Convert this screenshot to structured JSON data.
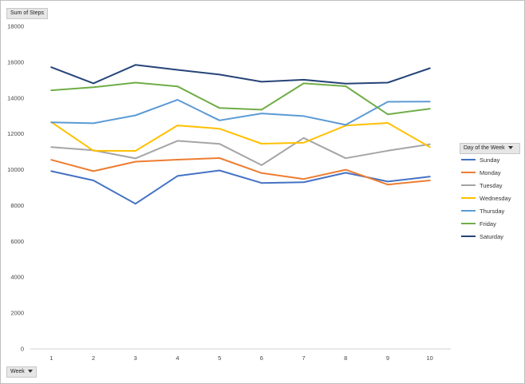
{
  "chart_data": {
    "type": "line",
    "title": "",
    "values_button": "Sum of Steps",
    "axis_button": "Week",
    "legend_title": "Day of the Week",
    "legend_position": "right",
    "grid": false,
    "ylim": [
      0,
      18000
    ],
    "yticks": [
      "0",
      "2000",
      "4000",
      "6000",
      "8000",
      "10000",
      "12000",
      "14000",
      "16000",
      "18000"
    ],
    "categories": [
      "1",
      "2",
      "3",
      "4",
      "5",
      "6",
      "7",
      "8",
      "9",
      "10"
    ],
    "series": [
      {
        "name": "Sunday",
        "color": "#4472C4",
        "values": [
          9920,
          9400,
          8100,
          9650,
          9960,
          9260,
          9300,
          9830,
          9340,
          9610
        ]
      },
      {
        "name": "Monday",
        "color": "#ED7D31",
        "values": [
          10550,
          9920,
          10450,
          10560,
          10650,
          9810,
          9480,
          10000,
          9170,
          9400
        ]
      },
      {
        "name": "Tuesday",
        "color": "#A5A5A5",
        "values": [
          11260,
          11080,
          10630,
          11610,
          11440,
          10250,
          11770,
          10640,
          11060,
          11420
        ]
      },
      {
        "name": "Wednesday",
        "color": "#FFC000",
        "values": [
          12660,
          11060,
          11050,
          12470,
          12290,
          11450,
          11510,
          12460,
          12610,
          11260
        ]
      },
      {
        "name": "Thursday",
        "color": "#5B9BD5",
        "values": [
          12640,
          12590,
          13030,
          13900,
          12750,
          13140,
          12990,
          12500,
          13790,
          13800
        ]
      },
      {
        "name": "Friday",
        "color": "#70AD47",
        "values": [
          14430,
          14600,
          14860,
          14650,
          13440,
          13350,
          14820,
          14660,
          13090,
          13400
        ]
      },
      {
        "name": "Saturday",
        "color": "#264478",
        "values": [
          15720,
          14820,
          15850,
          15570,
          15310,
          14910,
          15020,
          14800,
          14860,
          15660
        ]
      }
    ]
  }
}
